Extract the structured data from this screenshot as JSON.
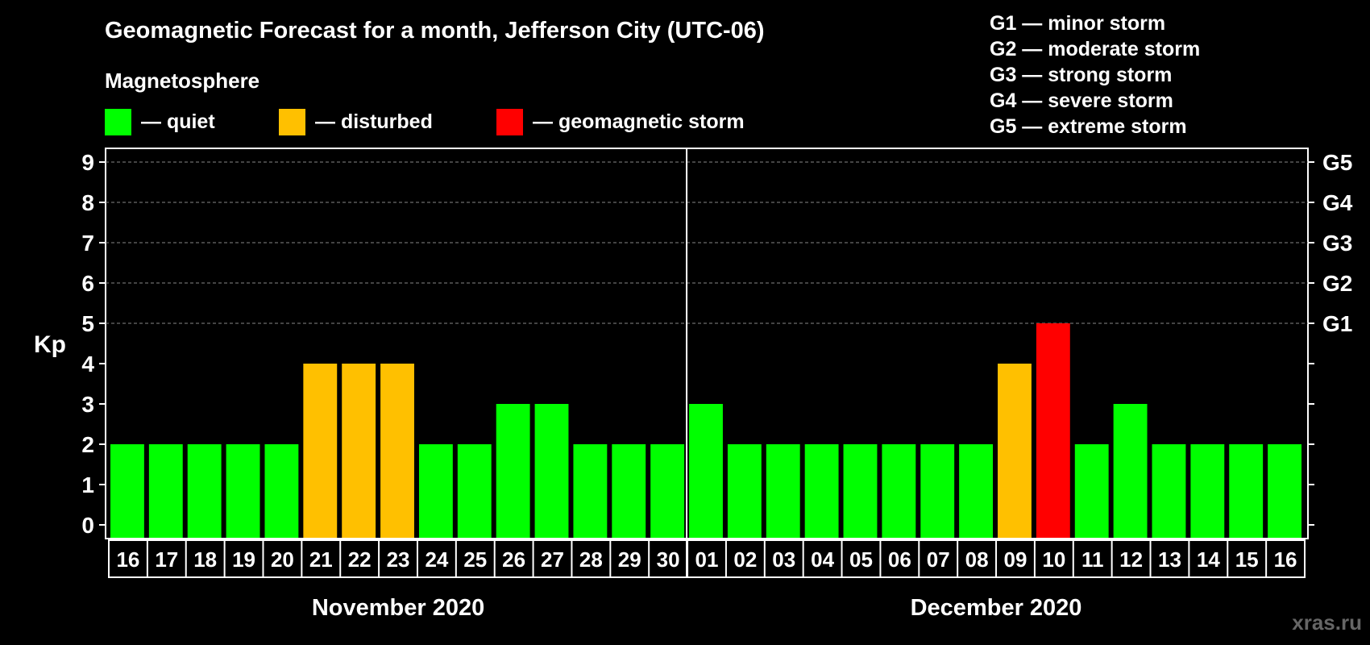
{
  "title": "Geomagnetic Forecast for a month, Jefferson City (UTC-06)",
  "subtitle": "Magnetosphere",
  "legend": [
    {
      "label": "— quiet",
      "color": "#00ff00"
    },
    {
      "label": "— disturbed",
      "color": "#ffc000"
    },
    {
      "label": "— geomagnetic storm",
      "color": "#ff0000"
    }
  ],
  "storm_levels": [
    "G1 — minor storm",
    "G2 — moderate storm",
    "G3 — strong storm",
    "G4 — severe storm",
    "G5 — extreme storm"
  ],
  "watermark": "xras.ru",
  "chart_data": {
    "type": "bar",
    "ylabel": "Kp",
    "ylim": [
      0,
      9
    ],
    "yticks": [
      "0",
      "1",
      "2",
      "3",
      "4",
      "5",
      "6",
      "7",
      "8",
      "9"
    ],
    "right_axis_labels": [
      {
        "kp": 5,
        "label": "G1"
      },
      {
        "kp": 6,
        "label": "G2"
      },
      {
        "kp": 7,
        "label": "G3"
      },
      {
        "kp": 8,
        "label": "G4"
      },
      {
        "kp": 9,
        "label": "G5"
      }
    ],
    "grid": "dashed horizontal at Kp 5–9",
    "categories": [
      "16",
      "17",
      "18",
      "19",
      "20",
      "21",
      "22",
      "23",
      "24",
      "25",
      "26",
      "27",
      "28",
      "29",
      "30",
      "01",
      "02",
      "03",
      "04",
      "05",
      "06",
      "07",
      "08",
      "09",
      "10",
      "11",
      "12",
      "13",
      "14",
      "15",
      "16"
    ],
    "values": [
      2,
      2,
      2,
      2,
      2,
      4,
      4,
      4,
      2,
      2,
      3,
      3,
      2,
      2,
      2,
      3,
      2,
      2,
      2,
      2,
      2,
      2,
      2,
      4,
      5,
      2,
      3,
      2,
      2,
      2,
      2
    ],
    "months": [
      {
        "label": "November 2020",
        "from_index": 0,
        "to_index": 14
      },
      {
        "label": "December 2020",
        "from_index": 15,
        "to_index": 30
      }
    ],
    "color_rule": {
      "quiet": "#00ff00",
      "disturbed": "#ffc000",
      "storm": "#ff0000"
    }
  }
}
